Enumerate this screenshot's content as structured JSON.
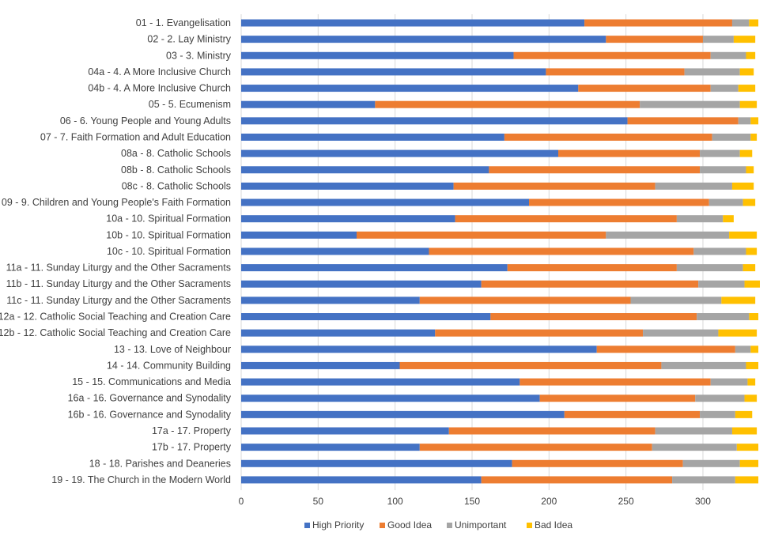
{
  "chart_data": {
    "type": "bar",
    "orientation": "horizontal",
    "stacked": true,
    "categories": [
      "01 - 1. Evangelisation",
      "02 - 2. Lay Ministry",
      "03 - 3. Ministry",
      "04a - 4. A More Inclusive Church",
      "04b - 4. A More Inclusive Church",
      "05 - 5. Ecumenism",
      "06 - 6. Young People and Young Adults",
      "07 - 7. Faith Formation and Adult Education",
      "08a - 8. Catholic Schools",
      "08b - 8. Catholic Schools",
      "08c - 8. Catholic Schools",
      "09 - 9. Children and Young People's Faith Formation",
      "10a - 10. Spiritual Formation",
      "10b - 10. Spiritual Formation",
      "10c - 10. Spiritual Formation",
      "11a - 11. Sunday Liturgy and the Other Sacraments",
      "11b - 11. Sunday Liturgy and the Other Sacraments",
      "11c - 11. Sunday Liturgy and the Other Sacraments",
      "12a - 12. Catholic Social Teaching and Creation Care",
      "12b - 12. Catholic Social Teaching and Creation Care",
      "13 - 13. Love of Neighbour",
      "14 - 14. Community Building",
      "15 - 15. Communications and Media",
      "16a - 16. Governance and Synodality",
      "16b - 16. Governance and Synodality",
      "17a - 17. Property",
      "17b - 17. Property",
      "18 - 18. Parishes and Deaneries",
      "19 - 19. The Church in the Modern World"
    ],
    "series": [
      {
        "name": "High Priority",
        "color": "#4472C4",
        "values": [
          223,
          237,
          177,
          198,
          219,
          87,
          251,
          171,
          206,
          161,
          138,
          187,
          139,
          75,
          122,
          173,
          156,
          116,
          162,
          126,
          231,
          103,
          181,
          194,
          210,
          135,
          116,
          176,
          156
        ]
      },
      {
        "name": "Good Idea",
        "color": "#ED7D31",
        "values": [
          96,
          63,
          128,
          90,
          86,
          172,
          72,
          135,
          92,
          137,
          131,
          117,
          144,
          162,
          172,
          110,
          141,
          137,
          134,
          135,
          90,
          170,
          124,
          101,
          88,
          134,
          151,
          111,
          124
        ]
      },
      {
        "name": "Unimportant",
        "color": "#A5A5A5",
        "values": [
          11,
          20,
          23,
          36,
          18,
          65,
          8,
          25,
          26,
          30,
          50,
          22,
          30,
          80,
          34,
          43,
          30,
          59,
          34,
          49,
          10,
          55,
          24,
          32,
          23,
          50,
          55,
          37,
          41
        ]
      },
      {
        "name": "Bad Idea",
        "color": "#FFC000",
        "values": [
          6,
          14,
          6,
          9,
          11,
          11,
          5,
          4,
          8,
          5,
          14,
          8,
          7,
          18,
          7,
          8,
          10,
          22,
          6,
          25,
          5,
          8,
          5,
          8,
          11,
          16,
          14,
          12,
          15
        ]
      }
    ],
    "xlim": [
      0,
      337
    ],
    "xticks": [
      0,
      50,
      100,
      150,
      200,
      250,
      300
    ],
    "grid": true,
    "legend_position": "bottom",
    "title": "",
    "xlabel": "",
    "ylabel": ""
  }
}
